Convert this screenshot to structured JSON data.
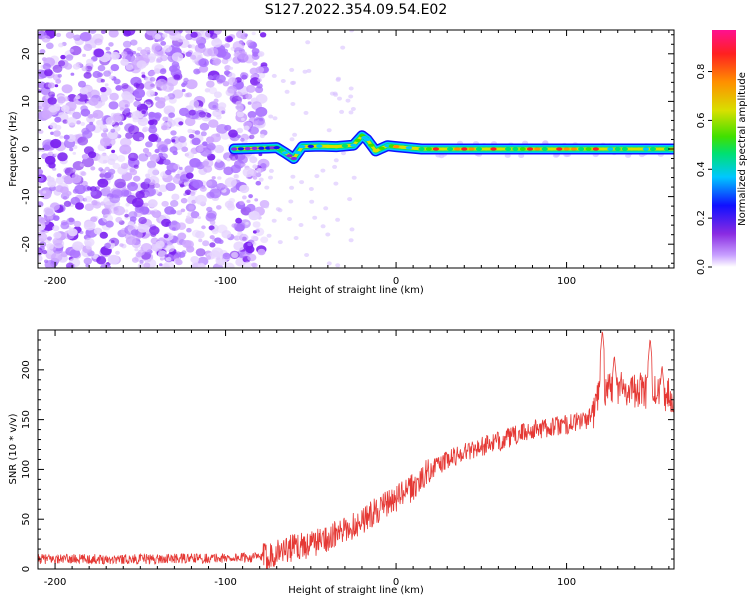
{
  "figure": {
    "title": "S127.2022.354.09.54.E02"
  },
  "chart_data": [
    {
      "type": "heatmap",
      "xlabel": "Height of straight line (km)",
      "ylabel": "Frequency (Hz)",
      "xlim": [
        -210,
        163
      ],
      "ylim": [
        -25,
        25
      ],
      "xticks": [
        -200,
        -100,
        0,
        100
      ],
      "yticks": [
        -20,
        -10,
        0,
        10,
        20
      ],
      "noise_region_x": [
        -210,
        -77
      ],
      "signal_ridge": [
        {
          "x": -95,
          "y": 0.0,
          "v": 0.25
        },
        {
          "x": -75,
          "y": 0.2,
          "v": 0.35
        },
        {
          "x": -70,
          "y": 0.3,
          "v": 0.45
        },
        {
          "x": -65,
          "y": -0.8,
          "v": 0.5
        },
        {
          "x": -60,
          "y": -2.0,
          "v": 0.35
        },
        {
          "x": -55,
          "y": 0.5,
          "v": 0.45
        },
        {
          "x": -45,
          "y": 0.6,
          "v": 0.7
        },
        {
          "x": -35,
          "y": 0.5,
          "v": 0.75
        },
        {
          "x": -25,
          "y": 0.8,
          "v": 0.8
        },
        {
          "x": -20,
          "y": 2.8,
          "v": 0.6
        },
        {
          "x": -17,
          "y": 2.0,
          "v": 0.7
        },
        {
          "x": -12,
          "y": -0.4,
          "v": 0.75
        },
        {
          "x": -5,
          "y": 0.7,
          "v": 0.8
        },
        {
          "x": 0,
          "y": 0.5,
          "v": 0.85
        },
        {
          "x": 15,
          "y": 0.0,
          "v": 0.9
        },
        {
          "x": 40,
          "y": 0.0,
          "v": 0.95
        },
        {
          "x": 70,
          "y": 0.0,
          "v": 0.95
        },
        {
          "x": 100,
          "y": 0.0,
          "v": 0.92
        },
        {
          "x": 130,
          "y": 0.0,
          "v": 0.85
        },
        {
          "x": 163,
          "y": 0.0,
          "v": 0.6
        }
      ]
    },
    {
      "type": "colorbar",
      "label": "Normalized spectral amplitude",
      "ticks": [
        0.0,
        0.2,
        0.4,
        0.6,
        0.8
      ],
      "range": [
        0,
        0.97
      ],
      "colors": [
        "#ffffff",
        "#c8a0ff",
        "#8a2be2",
        "#1010ff",
        "#00c8ff",
        "#00e070",
        "#40e000",
        "#d8e000",
        "#ff9000",
        "#ff2020",
        "#ff1090"
      ]
    },
    {
      "type": "line",
      "xlabel": "Height of straight line (km)",
      "ylabel": "SNR (10 * v/v)",
      "xlim": [
        -210,
        163
      ],
      "ylim": [
        0,
        240
      ],
      "xticks": [
        -200,
        -100,
        0,
        100
      ],
      "yticks": [
        0,
        50,
        100,
        150,
        200
      ],
      "color": "#e53935",
      "trend": [
        {
          "x": -210,
          "y": 10
        },
        {
          "x": -150,
          "y": 10
        },
        {
          "x": -100,
          "y": 11
        },
        {
          "x": -78,
          "y": 12
        },
        {
          "x": -65,
          "y": 20
        },
        {
          "x": -50,
          "y": 25
        },
        {
          "x": -30,
          "y": 38
        },
        {
          "x": -10,
          "y": 60
        },
        {
          "x": 10,
          "y": 82
        },
        {
          "x": 20,
          "y": 100
        },
        {
          "x": 40,
          "y": 118
        },
        {
          "x": 60,
          "y": 128
        },
        {
          "x": 80,
          "y": 140
        },
        {
          "x": 100,
          "y": 145
        },
        {
          "x": 115,
          "y": 152
        },
        {
          "x": 118,
          "y": 175
        },
        {
          "x": 125,
          "y": 185
        },
        {
          "x": 140,
          "y": 180
        },
        {
          "x": 163,
          "y": 175
        }
      ],
      "peaks": [
        {
          "x": 121,
          "y": 240
        },
        {
          "x": 128,
          "y": 215
        },
        {
          "x": 149,
          "y": 232
        },
        {
          "x": 156,
          "y": 205
        }
      ]
    }
  ]
}
